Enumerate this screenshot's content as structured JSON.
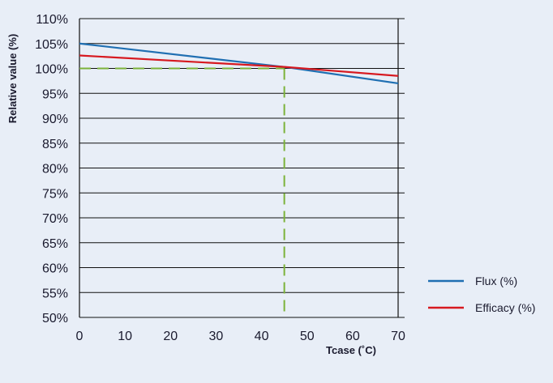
{
  "chart_data": {
    "type": "line",
    "xlabel": "Tcase (˚C)",
    "ylabel": "Relative value (%)",
    "xlim": [
      0,
      70
    ],
    "ylim": [
      50,
      110
    ],
    "x_ticks": [
      "0",
      "10",
      "20",
      "30",
      "40",
      "50",
      "60",
      "70"
    ],
    "y_ticks": [
      "50%",
      "55%",
      "60%",
      "65%",
      "70%",
      "75%",
      "80%",
      "85%",
      "90%",
      "95%",
      "100%",
      "105%",
      "110%"
    ],
    "grid": "horizontal",
    "legend_position": "right",
    "series": [
      {
        "name": "Flux (%)",
        "color": "#1f6fb2",
        "x": [
          0,
          45,
          70
        ],
        "y": [
          105,
          100.3,
          97
        ]
      },
      {
        "name": "Efficacy (%)",
        "color": "#d71920",
        "x": [
          0,
          45,
          70
        ],
        "y": [
          102.6,
          100.3,
          98.5
        ]
      }
    ],
    "reference_line": {
      "color": "#7bb23a",
      "x": 45,
      "y": 100
    }
  }
}
